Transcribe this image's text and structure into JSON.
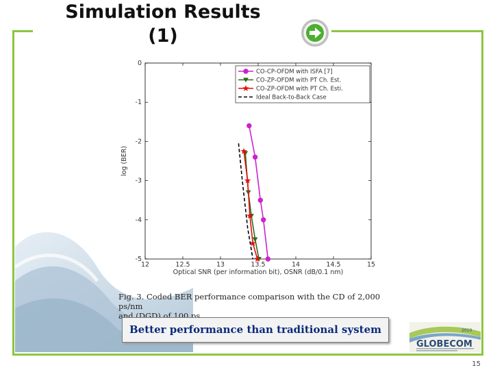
{
  "slide": {
    "title_line1": "Simulation Results",
    "title_line2": "(1)",
    "callout_text": "Better performance than traditional system",
    "page_number": "15",
    "caption_line1": "Fig. 3.    Coded BER performance comparison with the CD of 2,000 ps/nm",
    "caption_line2": "and (DGD) of 100 ps.",
    "logo_text": "GLOBECOM",
    "logo_year": "2010",
    "accent_color": "#8cc63f"
  },
  "chart_data": {
    "type": "line",
    "title": "",
    "xlabel": "Optical SNR (per information bit), OSNR (dB/0.1 nm)",
    "ylabel": "log (BER)",
    "xlim": [
      12,
      15
    ],
    "ylim": [
      -5,
      0
    ],
    "x_ticks": [
      "12",
      "12.5",
      "13",
      "13.5",
      "14",
      "14.5",
      "15"
    ],
    "y_ticks": [
      "0",
      "-1",
      "-2",
      "-3",
      "-4",
      "-5"
    ],
    "legend_position": "top-right",
    "series": [
      {
        "name": "CO-CP-OFDM with ISFA [7]",
        "color": "#cc22cc",
        "marker": "circle",
        "dash": "solid",
        "x": [
          13.38,
          13.46,
          13.53,
          13.57,
          13.63
        ],
        "y": [
          -1.6,
          -2.4,
          -3.5,
          -4.0,
          -5.0
        ]
      },
      {
        "name": "CO-ZP-OFDM with PT Ch. Est.",
        "color": "#2b6b1a",
        "marker": "triangle-down",
        "dash": "solid",
        "x": [
          13.33,
          13.37,
          13.41,
          13.46,
          13.51
        ],
        "y": [
          -2.3,
          -3.3,
          -3.9,
          -4.5,
          -5.0
        ]
      },
      {
        "name": "CO-ZP-OFDM with PT Ch. Esti.",
        "color": "#e01010",
        "marker": "star",
        "dash": "solid",
        "x": [
          13.31,
          13.36,
          13.39,
          13.43,
          13.49
        ],
        "y": [
          -2.25,
          -3.0,
          -3.9,
          -4.6,
          -5.0
        ]
      },
      {
        "name": "Ideal Back-to-Back Case",
        "color": "#000000",
        "marker": "none",
        "dash": "dashed",
        "x": [
          13.24,
          13.29,
          13.36,
          13.43
        ],
        "y": [
          -2.05,
          -3.0,
          -4.2,
          -5.0
        ]
      }
    ]
  }
}
